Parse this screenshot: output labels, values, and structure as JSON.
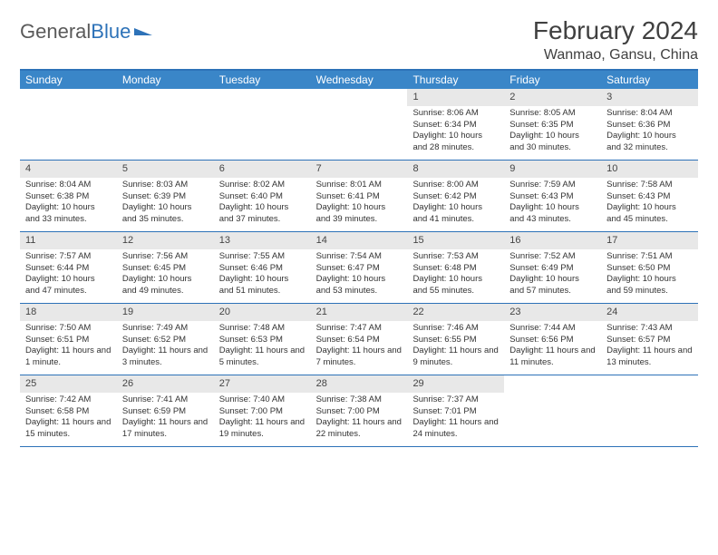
{
  "brand": {
    "part1": "General",
    "part2": "Blue"
  },
  "title": "February 2024",
  "location": "Wanmao, Gansu, China",
  "colors": {
    "header_bg": "#3a86c8",
    "border": "#2d72b8",
    "daynum_bg": "#e8e8e8",
    "text": "#333333",
    "title_text": "#404040"
  },
  "day_names": [
    "Sunday",
    "Monday",
    "Tuesday",
    "Wednesday",
    "Thursday",
    "Friday",
    "Saturday"
  ],
  "weeks": [
    [
      {
        "n": "",
        "sr": "",
        "ss": "",
        "dl": ""
      },
      {
        "n": "",
        "sr": "",
        "ss": "",
        "dl": ""
      },
      {
        "n": "",
        "sr": "",
        "ss": "",
        "dl": ""
      },
      {
        "n": "",
        "sr": "",
        "ss": "",
        "dl": ""
      },
      {
        "n": "1",
        "sr": "Sunrise: 8:06 AM",
        "ss": "Sunset: 6:34 PM",
        "dl": "Daylight: 10 hours and 28 minutes."
      },
      {
        "n": "2",
        "sr": "Sunrise: 8:05 AM",
        "ss": "Sunset: 6:35 PM",
        "dl": "Daylight: 10 hours and 30 minutes."
      },
      {
        "n": "3",
        "sr": "Sunrise: 8:04 AM",
        "ss": "Sunset: 6:36 PM",
        "dl": "Daylight: 10 hours and 32 minutes."
      }
    ],
    [
      {
        "n": "4",
        "sr": "Sunrise: 8:04 AM",
        "ss": "Sunset: 6:38 PM",
        "dl": "Daylight: 10 hours and 33 minutes."
      },
      {
        "n": "5",
        "sr": "Sunrise: 8:03 AM",
        "ss": "Sunset: 6:39 PM",
        "dl": "Daylight: 10 hours and 35 minutes."
      },
      {
        "n": "6",
        "sr": "Sunrise: 8:02 AM",
        "ss": "Sunset: 6:40 PM",
        "dl": "Daylight: 10 hours and 37 minutes."
      },
      {
        "n": "7",
        "sr": "Sunrise: 8:01 AM",
        "ss": "Sunset: 6:41 PM",
        "dl": "Daylight: 10 hours and 39 minutes."
      },
      {
        "n": "8",
        "sr": "Sunrise: 8:00 AM",
        "ss": "Sunset: 6:42 PM",
        "dl": "Daylight: 10 hours and 41 minutes."
      },
      {
        "n": "9",
        "sr": "Sunrise: 7:59 AM",
        "ss": "Sunset: 6:43 PM",
        "dl": "Daylight: 10 hours and 43 minutes."
      },
      {
        "n": "10",
        "sr": "Sunrise: 7:58 AM",
        "ss": "Sunset: 6:43 PM",
        "dl": "Daylight: 10 hours and 45 minutes."
      }
    ],
    [
      {
        "n": "11",
        "sr": "Sunrise: 7:57 AM",
        "ss": "Sunset: 6:44 PM",
        "dl": "Daylight: 10 hours and 47 minutes."
      },
      {
        "n": "12",
        "sr": "Sunrise: 7:56 AM",
        "ss": "Sunset: 6:45 PM",
        "dl": "Daylight: 10 hours and 49 minutes."
      },
      {
        "n": "13",
        "sr": "Sunrise: 7:55 AM",
        "ss": "Sunset: 6:46 PM",
        "dl": "Daylight: 10 hours and 51 minutes."
      },
      {
        "n": "14",
        "sr": "Sunrise: 7:54 AM",
        "ss": "Sunset: 6:47 PM",
        "dl": "Daylight: 10 hours and 53 minutes."
      },
      {
        "n": "15",
        "sr": "Sunrise: 7:53 AM",
        "ss": "Sunset: 6:48 PM",
        "dl": "Daylight: 10 hours and 55 minutes."
      },
      {
        "n": "16",
        "sr": "Sunrise: 7:52 AM",
        "ss": "Sunset: 6:49 PM",
        "dl": "Daylight: 10 hours and 57 minutes."
      },
      {
        "n": "17",
        "sr": "Sunrise: 7:51 AM",
        "ss": "Sunset: 6:50 PM",
        "dl": "Daylight: 10 hours and 59 minutes."
      }
    ],
    [
      {
        "n": "18",
        "sr": "Sunrise: 7:50 AM",
        "ss": "Sunset: 6:51 PM",
        "dl": "Daylight: 11 hours and 1 minute."
      },
      {
        "n": "19",
        "sr": "Sunrise: 7:49 AM",
        "ss": "Sunset: 6:52 PM",
        "dl": "Daylight: 11 hours and 3 minutes."
      },
      {
        "n": "20",
        "sr": "Sunrise: 7:48 AM",
        "ss": "Sunset: 6:53 PM",
        "dl": "Daylight: 11 hours and 5 minutes."
      },
      {
        "n": "21",
        "sr": "Sunrise: 7:47 AM",
        "ss": "Sunset: 6:54 PM",
        "dl": "Daylight: 11 hours and 7 minutes."
      },
      {
        "n": "22",
        "sr": "Sunrise: 7:46 AM",
        "ss": "Sunset: 6:55 PM",
        "dl": "Daylight: 11 hours and 9 minutes."
      },
      {
        "n": "23",
        "sr": "Sunrise: 7:44 AM",
        "ss": "Sunset: 6:56 PM",
        "dl": "Daylight: 11 hours and 11 minutes."
      },
      {
        "n": "24",
        "sr": "Sunrise: 7:43 AM",
        "ss": "Sunset: 6:57 PM",
        "dl": "Daylight: 11 hours and 13 minutes."
      }
    ],
    [
      {
        "n": "25",
        "sr": "Sunrise: 7:42 AM",
        "ss": "Sunset: 6:58 PM",
        "dl": "Daylight: 11 hours and 15 minutes."
      },
      {
        "n": "26",
        "sr": "Sunrise: 7:41 AM",
        "ss": "Sunset: 6:59 PM",
        "dl": "Daylight: 11 hours and 17 minutes."
      },
      {
        "n": "27",
        "sr": "Sunrise: 7:40 AM",
        "ss": "Sunset: 7:00 PM",
        "dl": "Daylight: 11 hours and 19 minutes."
      },
      {
        "n": "28",
        "sr": "Sunrise: 7:38 AM",
        "ss": "Sunset: 7:00 PM",
        "dl": "Daylight: 11 hours and 22 minutes."
      },
      {
        "n": "29",
        "sr": "Sunrise: 7:37 AM",
        "ss": "Sunset: 7:01 PM",
        "dl": "Daylight: 11 hours and 24 minutes."
      },
      {
        "n": "",
        "sr": "",
        "ss": "",
        "dl": ""
      },
      {
        "n": "",
        "sr": "",
        "ss": "",
        "dl": ""
      }
    ]
  ]
}
